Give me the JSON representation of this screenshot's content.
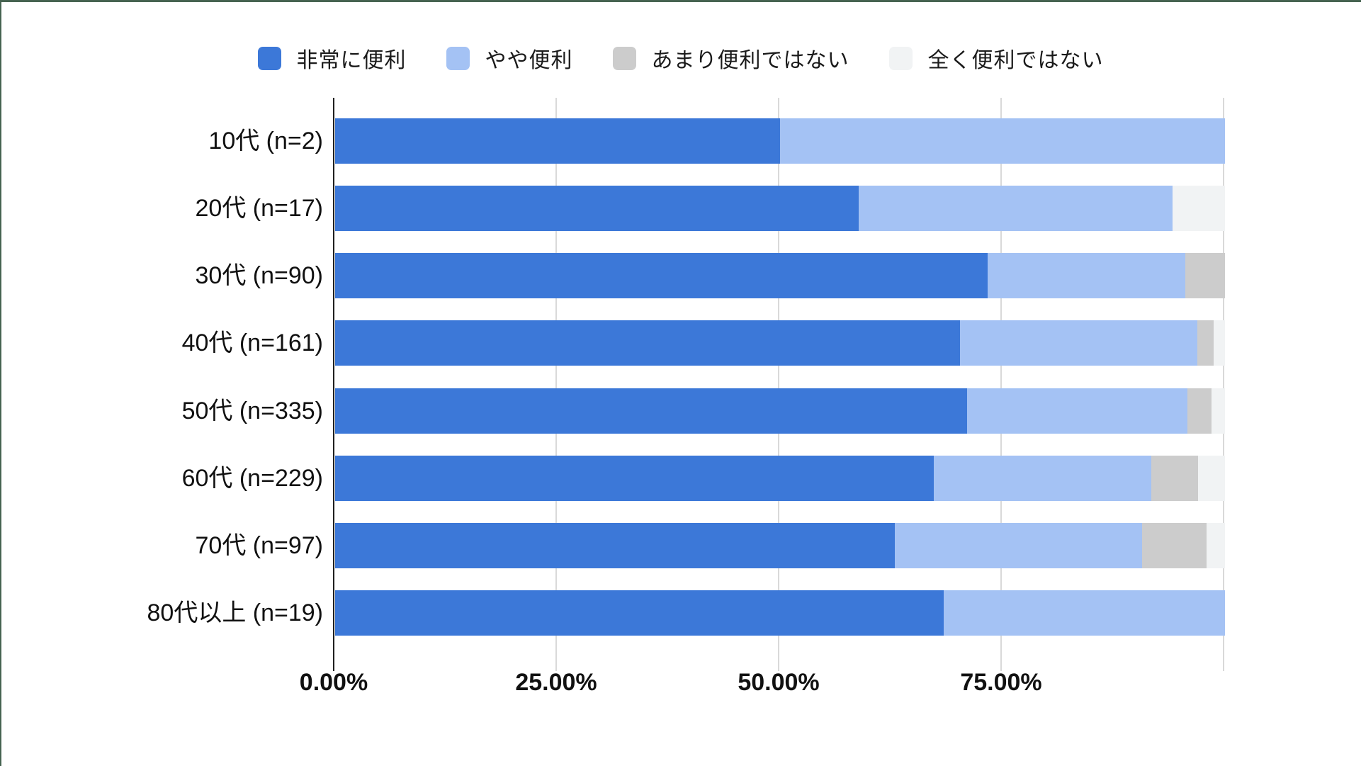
{
  "window": {
    "frame_top_color": "#466351",
    "frame_left_color": "#466351",
    "background": "#ffffff"
  },
  "colors": {
    "grid": "#d9d9d9",
    "axis": "#1f1f1f",
    "text": "#111111"
  },
  "chart_data": {
    "type": "bar",
    "orientation": "horizontal",
    "stacked": true,
    "unit": "percent",
    "grid": true,
    "legend_position": "top",
    "xlim": [
      0,
      100
    ],
    "x_tick_labels": [
      "0.00%",
      "25.00%",
      "50.00%",
      "75.00%"
    ],
    "x_tick_values": [
      0,
      25,
      50,
      75
    ],
    "categories": [
      "10代 (n=2)",
      "20代 (n=17)",
      "30代 (n=90)",
      "40代 (n=161)",
      "50代 (n=335)",
      "60代 (n=229)",
      "70代 (n=97)",
      "80代以上 (n=19)"
    ],
    "n_values": [
      2,
      17,
      90,
      161,
      335,
      229,
      97,
      19
    ],
    "series": [
      {
        "name": "非常に便利",
        "color": "#3c78d8",
        "pattern": "solid",
        "values": [
          50,
          58.82,
          73.33,
          70.19,
          71.04,
          67.25,
          62.89,
          68.42
        ]
      },
      {
        "name": "やや便利",
        "color": "#a4c2f4",
        "pattern": "solid",
        "values": [
          50,
          35.29,
          22.22,
          26.71,
          24.78,
          24.45,
          27.84,
          31.58
        ]
      },
      {
        "name": "あまり便利ではない",
        "color": "#cccccc",
        "pattern": "solid",
        "values": [
          0,
          0,
          4.44,
          1.86,
          2.69,
          5.24,
          7.22,
          0
        ]
      },
      {
        "name": "全く便利ではない",
        "color": "#f1f3f4",
        "pattern": "dots",
        "values": [
          0,
          5.88,
          0,
          1.24,
          1.49,
          3.06,
          2.06,
          0
        ]
      }
    ]
  }
}
